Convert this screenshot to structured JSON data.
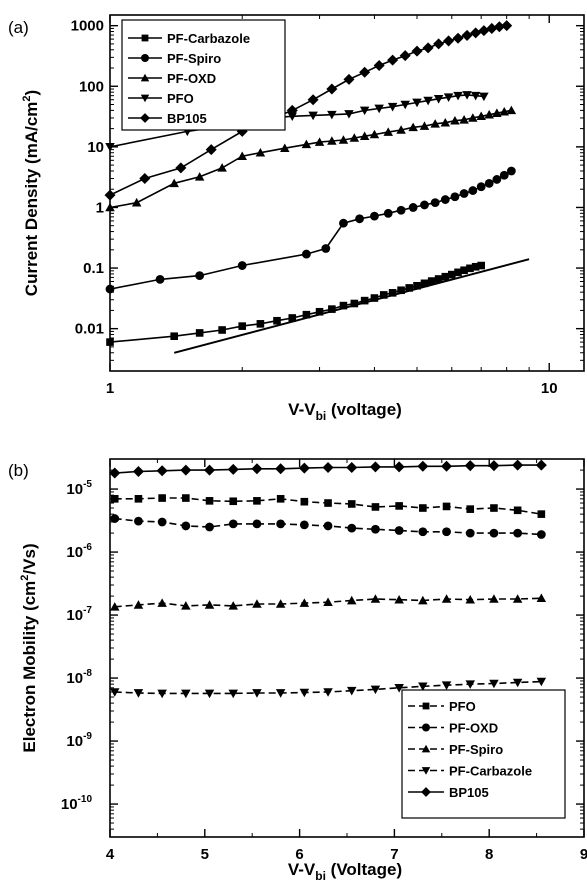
{
  "chart_data": [
    {
      "type": "line",
      "panel_label": "(a)",
      "xlabel_main": "V-V",
      "xlabel_sub": "bi",
      "xlabel_tail": " (voltage)",
      "ylabel_main": "Current Density (mA/cm",
      "ylabel_sup": "2",
      "ylabel_tail": ")",
      "xscale": "log",
      "yscale": "log",
      "xlim": [
        1,
        12
      ],
      "ylim": [
        0.002,
        1500
      ],
      "xticks": [
        {
          "v": 1,
          "label": "1"
        },
        {
          "v": 10,
          "label": "10"
        }
      ],
      "yticks": [
        {
          "v": 0.01,
          "label": "0.01"
        },
        {
          "v": 0.1,
          "label": "0.1"
        },
        {
          "v": 1,
          "label": "1"
        },
        {
          "v": 10,
          "label": "10"
        },
        {
          "v": 100,
          "label": "100"
        },
        {
          "v": 1000,
          "label": "1000"
        }
      ],
      "legend_position": "top-left",
      "legend": [
        "PF-Carbazole",
        "PF-Spiro",
        "PF-OXD",
        "PFO",
        "BP105"
      ],
      "series": [
        {
          "name": "PF-Carbazole",
          "marker": "square",
          "x": [
            1.0,
            1.4,
            1.6,
            1.8,
            2.0,
            2.2,
            2.4,
            2.6,
            2.8,
            3.0,
            3.2,
            3.4,
            3.6,
            3.8,
            4.0,
            4.2,
            4.4,
            4.6,
            4.8,
            5.0,
            5.2,
            5.4,
            5.6,
            5.8,
            6.0,
            6.2,
            6.4,
            6.6,
            6.8,
            7.0
          ],
          "y": [
            0.006,
            0.0075,
            0.0085,
            0.0095,
            0.011,
            0.012,
            0.0135,
            0.015,
            0.017,
            0.019,
            0.021,
            0.024,
            0.026,
            0.029,
            0.032,
            0.036,
            0.039,
            0.043,
            0.047,
            0.051,
            0.056,
            0.061,
            0.066,
            0.072,
            0.078,
            0.085,
            0.092,
            0.099,
            0.105,
            0.11
          ]
        },
        {
          "name": "PF-Spiro",
          "marker": "circle",
          "x": [
            1.0,
            1.3,
            1.6,
            2.0,
            2.8,
            3.1,
            3.4,
            3.7,
            4.0,
            4.3,
            4.6,
            4.9,
            5.2,
            5.5,
            5.8,
            6.1,
            6.4,
            6.7,
            7.0,
            7.3,
            7.6,
            7.9,
            8.2
          ],
          "y": [
            0.045,
            0.065,
            0.075,
            0.11,
            0.17,
            0.21,
            0.55,
            0.65,
            0.72,
            0.8,
            0.9,
            1.0,
            1.1,
            1.2,
            1.35,
            1.5,
            1.7,
            1.9,
            2.2,
            2.5,
            2.9,
            3.4,
            4.0
          ]
        },
        {
          "name": "PF-OXD",
          "marker": "triangle-up",
          "x": [
            1.0,
            1.15,
            1.4,
            1.6,
            1.8,
            2.0,
            2.2,
            2.5,
            2.8,
            3.0,
            3.2,
            3.4,
            3.6,
            3.8,
            4.0,
            4.3,
            4.6,
            4.9,
            5.2,
            5.5,
            5.8,
            6.1,
            6.4,
            6.7,
            7.0,
            7.3,
            7.6,
            7.9,
            8.2
          ],
          "y": [
            1.0,
            1.2,
            2.5,
            3.2,
            4.5,
            7.0,
            8.0,
            9.5,
            11,
            12,
            12.5,
            13,
            14,
            15,
            16,
            17.5,
            19,
            21,
            22,
            24,
            25,
            27,
            28,
            30,
            32,
            34,
            36,
            38,
            40
          ]
        },
        {
          "name": "PFO",
          "marker": "triangle-down",
          "x": [
            1.0,
            1.5,
            1.8,
            2.0,
            2.3,
            2.6,
            2.9,
            3.2,
            3.5,
            3.8,
            4.1,
            4.4,
            4.7,
            5.0,
            5.3,
            5.6,
            5.9,
            6.2,
            6.5,
            6.8,
            7.1
          ],
          "y": [
            10,
            18,
            22,
            26,
            30,
            32,
            33,
            34,
            35,
            40,
            43,
            46,
            50,
            54,
            58,
            62,
            66,
            70,
            72,
            70,
            68
          ]
        },
        {
          "name": "BP105",
          "marker": "diamond",
          "x": [
            1.0,
            1.2,
            1.45,
            1.7,
            2.0,
            2.3,
            2.6,
            2.9,
            3.2,
            3.5,
            3.8,
            4.1,
            4.4,
            4.7,
            5.0,
            5.3,
            5.6,
            5.9,
            6.2,
            6.5,
            6.8,
            7.1,
            7.4,
            7.7,
            8.0
          ],
          "y": [
            1.6,
            3.0,
            4.5,
            9.0,
            18,
            28,
            40,
            60,
            90,
            130,
            170,
            220,
            270,
            320,
            380,
            430,
            500,
            560,
            620,
            690,
            760,
            830,
            900,
            960,
            1000
          ]
        },
        {
          "name": "",
          "marker": "none",
          "x": [
            1.4,
            9.0
          ],
          "y": [
            0.004,
            0.14
          ]
        }
      ]
    },
    {
      "type": "line",
      "panel_label": "(b)",
      "xlabel_main": "V-V",
      "xlabel_sub": "bi",
      "xlabel_tail": " (Voltage)",
      "ylabel_main": "Electron Mobility (cm",
      "ylabel_sup": "2",
      "ylabel_tail": "/Vs)",
      "xscale": "linear",
      "yscale": "log",
      "xlim": [
        4,
        9
      ],
      "ylim": [
        3e-11,
        3e-05
      ],
      "xticks": [
        {
          "v": 4,
          "label": "4"
        },
        {
          "v": 5,
          "label": "5"
        },
        {
          "v": 6,
          "label": "6"
        },
        {
          "v": 7,
          "label": "7"
        },
        {
          "v": 8,
          "label": "8"
        },
        {
          "v": 9,
          "label": "9"
        }
      ],
      "yticks": [
        {
          "v": 1e-10,
          "base": "10",
          "exp": "-10"
        },
        {
          "v": 1e-09,
          "base": "10",
          "exp": "-9"
        },
        {
          "v": 1e-08,
          "base": "10",
          "exp": "-8"
        },
        {
          "v": 1e-07,
          "base": "10",
          "exp": "-7"
        },
        {
          "v": 1e-06,
          "base": "10",
          "exp": "-6"
        },
        {
          "v": 1e-05,
          "base": "10",
          "exp": "-5"
        }
      ],
      "legend_position": "bottom-right",
      "legend": [
        "PFO",
        "PF-OXD",
        "PF-Spiro",
        "PF-Carbazole",
        "BP105"
      ],
      "series": [
        {
          "name": "PFO",
          "marker": "square",
          "x": [
            4.05,
            4.3,
            4.55,
            4.8,
            5.05,
            5.3,
            5.55,
            5.8,
            6.05,
            6.3,
            6.55,
            6.8,
            7.05,
            7.3,
            7.55,
            7.8,
            8.05,
            8.3,
            8.55
          ],
          "y": [
            7e-06,
            7e-06,
            7.2e-06,
            7.2e-06,
            6.5e-06,
            6.4e-06,
            6.5e-06,
            7e-06,
            6.3e-06,
            6e-06,
            5.8e-06,
            5.2e-06,
            5.4e-06,
            5e-06,
            5.3e-06,
            4.8e-06,
            5e-06,
            4.6e-06,
            4e-06
          ]
        },
        {
          "name": "PF-OXD",
          "marker": "circle",
          "x": [
            4.05,
            4.3,
            4.55,
            4.8,
            5.05,
            5.3,
            5.55,
            5.8,
            6.05,
            6.3,
            6.55,
            6.8,
            7.05,
            7.3,
            7.55,
            7.8,
            8.05,
            8.3,
            8.55
          ],
          "y": [
            3.4e-06,
            3.1e-06,
            3e-06,
            2.6e-06,
            2.5e-06,
            2.8e-06,
            2.8e-06,
            2.8e-06,
            2.7e-06,
            2.6e-06,
            2.4e-06,
            2.3e-06,
            2.2e-06,
            2.1e-06,
            2.1e-06,
            2e-06,
            2e-06,
            2e-06,
            1.9e-06
          ]
        },
        {
          "name": "PF-Spiro",
          "marker": "triangle-up",
          "x": [
            4.05,
            4.3,
            4.55,
            4.8,
            5.05,
            5.3,
            5.55,
            5.8,
            6.05,
            6.3,
            6.55,
            6.8,
            7.05,
            7.3,
            7.55,
            7.8,
            8.05,
            8.3,
            8.55
          ],
          "y": [
            1.35e-07,
            1.45e-07,
            1.55e-07,
            1.4e-07,
            1.45e-07,
            1.4e-07,
            1.5e-07,
            1.5e-07,
            1.55e-07,
            1.6e-07,
            1.7e-07,
            1.8e-07,
            1.75e-07,
            1.7e-07,
            1.8e-07,
            1.75e-07,
            1.8e-07,
            1.8e-07,
            1.85e-07
          ]
        },
        {
          "name": "PF-Carbazole",
          "marker": "triangle-down",
          "x": [
            4.05,
            4.3,
            4.55,
            4.8,
            5.05,
            5.3,
            5.55,
            5.8,
            6.05,
            6.3,
            6.55,
            6.8,
            7.05,
            7.3,
            7.55,
            7.8,
            8.05,
            8.3,
            8.55
          ],
          "y": [
            6e-09,
            5.8e-09,
            5.7e-09,
            5.7e-09,
            5.7e-09,
            5.7e-09,
            5.8e-09,
            5.8e-09,
            5.9e-09,
            6e-09,
            6.3e-09,
            6.6e-09,
            7e-09,
            7.4e-09,
            7.7e-09,
            8e-09,
            8.2e-09,
            8.5e-09,
            8.8e-09
          ]
        },
        {
          "name": "BP105",
          "marker": "diamond",
          "x": [
            4.05,
            4.3,
            4.55,
            4.8,
            5.05,
            5.3,
            5.55,
            5.8,
            6.05,
            6.3,
            6.55,
            6.8,
            7.05,
            7.3,
            7.55,
            7.8,
            8.05,
            8.3,
            8.55
          ],
          "y": [
            1.8e-05,
            1.9e-05,
            1.95e-05,
            2e-05,
            2e-05,
            2.05e-05,
            2.1e-05,
            2.1e-05,
            2.15e-05,
            2.2e-05,
            2.2e-05,
            2.25e-05,
            2.25e-05,
            2.3e-05,
            2.3e-05,
            2.35e-05,
            2.35e-05,
            2.4e-05,
            2.4e-05
          ]
        }
      ]
    }
  ]
}
